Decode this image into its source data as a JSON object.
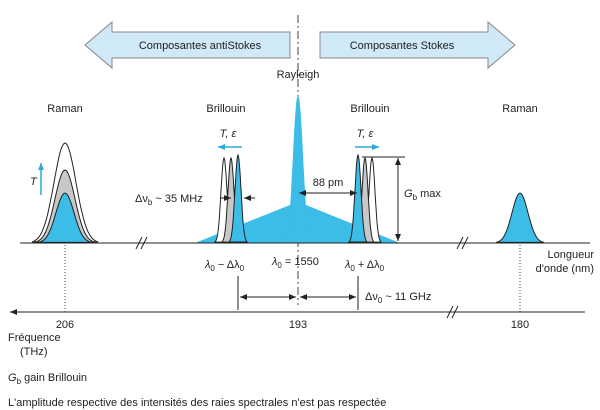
{
  "arrows": {
    "left": "Composantes antiStokes",
    "right": "Composantes Stokes"
  },
  "rayleigh": "Rayleigh",
  "peaks": {
    "raman_left": "Raman",
    "brillouin_left": "Brillouin",
    "brillouin_right": "Brillouin",
    "raman_right": "Raman"
  },
  "shift_left": "T, ε",
  "shift_right": "T, ε",
  "temperature": "T",
  "delta_nu_b": [
    "Δν",
    "b",
    " ~ 35 MHz"
  ],
  "spacing": "88 pm",
  "gb_max": [
    "G",
    "b",
    " max"
  ],
  "lambda_minus": [
    "λ",
    "0",
    " − Δλ",
    "0"
  ],
  "lambda_center": [
    "λ",
    "0",
    " = 1550"
  ],
  "lambda_plus": [
    "λ",
    "0",
    " + Δλ",
    "0"
  ],
  "wavelength_axis": [
    "Longueur",
    "d'onde (nm)"
  ],
  "delta_nu_0": [
    "Δν",
    "0",
    " ~ 11 GHz"
  ],
  "frequency_ticks": [
    206,
    193,
    180
  ],
  "frequency_axis": [
    "Fréquence",
    "(THz)"
  ],
  "legend": [
    "G",
    "b",
    " gain Brillouin"
  ],
  "note": "L'amplitude respective des intensités des raies spectrales n'est pas respectée"
}
